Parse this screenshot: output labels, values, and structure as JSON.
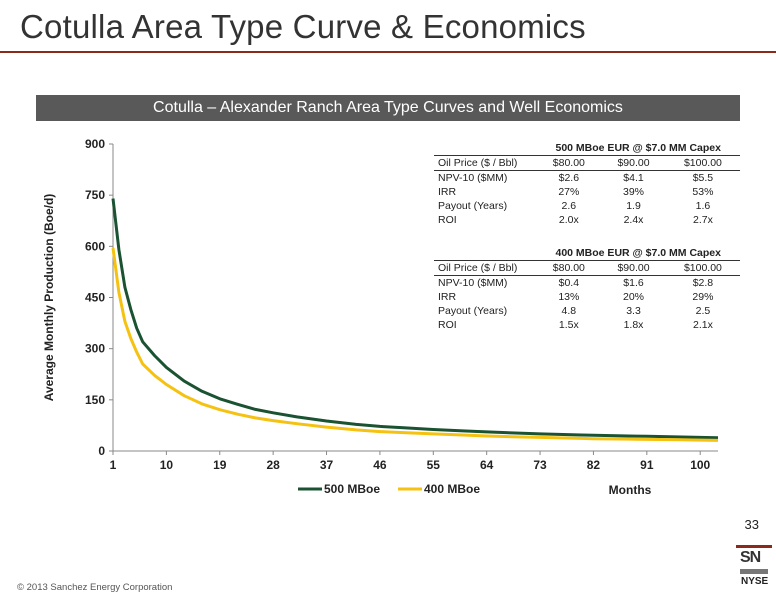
{
  "slide": {
    "title": "Cotulla Area Type Curve & Economics",
    "banner": "Cotulla – Alexander Ranch Area Type Curves and Well Economics",
    "page_number": "33",
    "copyright": "© 2013 Sanchez Energy Corporation",
    "logo_text": "SN",
    "exchange": "NYSE",
    "accent_color": "#8b2a1a"
  },
  "chart_data": {
    "type": "line",
    "xlabel": "Months",
    "ylabel": "Average Monthly Production (Boe/d)",
    "ylim": [
      0,
      900
    ],
    "yticks": [
      0,
      150,
      300,
      450,
      600,
      750,
      900
    ],
    "xlim": [
      1,
      103
    ],
    "xticks": [
      1,
      10,
      19,
      28,
      37,
      46,
      55,
      64,
      73,
      82,
      91,
      100
    ],
    "grid": false,
    "legend": "bottom-left",
    "series": [
      {
        "name": "500 MBoe",
        "color": "#1a5232",
        "x": [
          1,
          2,
          3,
          4,
          5,
          6,
          8,
          10,
          13,
          16,
          19,
          22,
          25,
          28,
          32,
          37,
          42,
          46,
          50,
          55,
          60,
          64,
          70,
          73,
          80,
          82,
          88,
          91,
          97,
          100,
          103
        ],
        "y": [
          740,
          590,
          480,
          415,
          360,
          320,
          280,
          245,
          205,
          175,
          153,
          137,
          122,
          112,
          100,
          88,
          78,
          72,
          68,
          63,
          59,
          56,
          52,
          50,
          47,
          46,
          44,
          43,
          41,
          40,
          39
        ]
      },
      {
        "name": "400 MBoe",
        "color": "#f5c211",
        "x": [
          1,
          2,
          3,
          4,
          5,
          6,
          8,
          10,
          13,
          16,
          19,
          22,
          25,
          28,
          32,
          37,
          42,
          46,
          50,
          55,
          60,
          64,
          70,
          73,
          80,
          82,
          88,
          91,
          97,
          100,
          103
        ],
        "y": [
          595,
          465,
          380,
          330,
          290,
          255,
          222,
          195,
          162,
          138,
          121,
          108,
          97,
          89,
          80,
          70,
          62,
          57,
          54,
          50,
          47,
          44,
          41,
          40,
          37,
          36,
          35,
          34,
          33,
          32,
          31
        ]
      }
    ]
  },
  "tables": [
    {
      "title": "500 MBoe EUR @ $7.0 MM Capex",
      "columns": [
        "Oil Price ($ / Bbl)",
        "$80.00",
        "$90.00",
        "$100.00"
      ],
      "rows": [
        [
          "NPV-10 ($MM)",
          "$2.6",
          "$4.1",
          "$5.5"
        ],
        [
          "IRR",
          "27%",
          "39%",
          "53%"
        ],
        [
          "Payout (Years)",
          "2.6",
          "1.9",
          "1.6"
        ],
        [
          "ROI",
          "2.0x",
          "2.4x",
          "2.7x"
        ]
      ]
    },
    {
      "title": "400 MBoe EUR @ $7.0 MM Capex",
      "columns": [
        "Oil Price ($ / Bbl)",
        "$80.00",
        "$90.00",
        "$100.00"
      ],
      "rows": [
        [
          "NPV-10 ($MM)",
          "$0.4",
          "$1.6",
          "$2.8"
        ],
        [
          "IRR",
          "13%",
          "20%",
          "29%"
        ],
        [
          "Payout (Years)",
          "4.8",
          "3.3",
          "2.5"
        ],
        [
          "ROI",
          "1.5x",
          "1.8x",
          "2.1x"
        ]
      ]
    }
  ]
}
